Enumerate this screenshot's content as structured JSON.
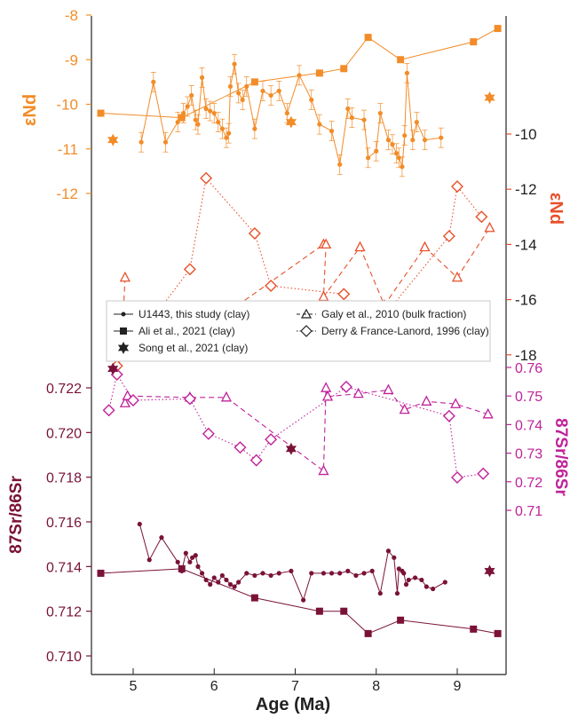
{
  "chart_data": {
    "type": "scatter",
    "x_axis": {
      "label": "Age (Ma)",
      "ticks": [
        "5",
        "6",
        "7",
        "8",
        "9"
      ],
      "range": [
        4.5,
        9.6
      ]
    },
    "axes": {
      "nd_left": {
        "label": "εNd",
        "ticks": [
          "-8",
          "-9",
          "-10",
          "-11",
          "-12"
        ],
        "range": [
          -12,
          -8
        ],
        "color": "#f28c28"
      },
      "nd_right": {
        "label": "εNd",
        "ticks": [
          "-10",
          "-12",
          "-14",
          "-16",
          "-18"
        ],
        "range": [
          -18,
          -10
        ],
        "color": "#e8502a"
      },
      "sr_right": {
        "label": "87Sr/86Sr",
        "ticks": [
          "0.76",
          "0.75",
          "0.74",
          "0.73",
          "0.72",
          "0.71"
        ],
        "range": [
          0.71,
          0.76
        ],
        "color": "#c0229a"
      },
      "sr_left": {
        "label": "87Sr/86Sr",
        "ticks": [
          "0.722",
          "0.720",
          "0.718",
          "0.716",
          "0.714",
          "0.712",
          "0.710"
        ],
        "range": [
          0.71,
          0.722
        ],
        "color": "#7a1238"
      }
    },
    "legend": {
      "placement": "center",
      "entries": [
        {
          "label": "U1443, this study (clay)",
          "marker": "circle",
          "line": "solid"
        },
        {
          "label": "Galy et al., 2010 (bulk fraction)",
          "marker": "triangle-open",
          "line": "dashed"
        },
        {
          "label": "Ali et al., 2021 (clay)",
          "marker": "square",
          "line": "solid"
        },
        {
          "label": "Derry & France-Lanord, 1996 (clay)",
          "marker": "diamond-open",
          "line": "dotted"
        },
        {
          "label": "Song et al., 2021 (clay)",
          "marker": "star",
          "line": "none"
        }
      ]
    },
    "series": [
      {
        "panel": "nd_left",
        "color": "#f28c28",
        "marker": "circle",
        "line": "solid",
        "error_bars": true,
        "points": [
          [
            5.1,
            -10.85
          ],
          [
            5.25,
            -9.5
          ],
          [
            5.4,
            -10.85
          ],
          [
            5.55,
            -10.4
          ],
          [
            5.62,
            -10.2
          ],
          [
            5.67,
            -10.05
          ],
          [
            5.72,
            -9.8
          ],
          [
            5.77,
            -10.35
          ],
          [
            5.8,
            -10.45
          ],
          [
            5.85,
            -9.4
          ],
          [
            5.9,
            -10.1
          ],
          [
            5.95,
            -10.15
          ],
          [
            6.0,
            -10.2
          ],
          [
            6.05,
            -10.4
          ],
          [
            6.1,
            -10.55
          ],
          [
            6.15,
            -10.75
          ],
          [
            6.18,
            -10.65
          ],
          [
            6.2,
            -9.6
          ],
          [
            6.25,
            -9.1
          ],
          [
            6.3,
            -9.75
          ],
          [
            6.35,
            -9.9
          ],
          [
            6.4,
            -9.6
          ],
          [
            6.5,
            -10.55
          ],
          [
            6.6,
            -9.7
          ],
          [
            6.7,
            -9.8
          ],
          [
            6.8,
            -9.7
          ],
          [
            6.9,
            -10.2
          ],
          [
            7.05,
            -9.35
          ],
          [
            7.2,
            -9.9
          ],
          [
            7.3,
            -10.45
          ],
          [
            7.45,
            -10.6
          ],
          [
            7.55,
            -11.35
          ],
          [
            7.65,
            -10.1
          ],
          [
            7.7,
            -10.3
          ],
          [
            7.85,
            -10.35
          ],
          [
            7.9,
            -11.2
          ],
          [
            8.0,
            -11.05
          ],
          [
            8.05,
            -10.2
          ],
          [
            8.15,
            -10.8
          ],
          [
            8.2,
            -10.9
          ],
          [
            8.25,
            -11.1
          ],
          [
            8.28,
            -11.2
          ],
          [
            8.32,
            -11.4
          ],
          [
            8.35,
            -10.7
          ],
          [
            8.38,
            -9.3
          ],
          [
            8.45,
            -10.8
          ],
          [
            8.5,
            -10.4
          ],
          [
            8.6,
            -10.8
          ],
          [
            8.8,
            -10.75
          ]
        ]
      },
      {
        "panel": "nd_left",
        "color": "#f28c28",
        "marker": "square",
        "line": "solid",
        "points": [
          [
            4.6,
            -10.2
          ],
          [
            5.6,
            -10.3
          ],
          [
            6.5,
            -9.5
          ],
          [
            7.3,
            -9.3
          ],
          [
            7.6,
            -9.2
          ],
          [
            7.9,
            -8.5
          ],
          [
            8.3,
            -9.0
          ],
          [
            9.2,
            -8.6
          ],
          [
            9.5,
            -8.3
          ]
        ]
      },
      {
        "panel": "nd_left",
        "color": "#f28c28",
        "marker": "star",
        "line": "none",
        "points": [
          [
            4.75,
            -10.8
          ],
          [
            6.95,
            -10.4
          ],
          [
            9.4,
            -9.85
          ]
        ]
      },
      {
        "panel": "nd_right",
        "color": "#e8502a",
        "marker": "triangle-open",
        "line": "dashed",
        "points": [
          [
            4.9,
            -15.2
          ],
          [
            4.88,
            -16.4
          ],
          [
            6.1,
            -16.6
          ],
          [
            7.35,
            -14.0
          ],
          [
            7.38,
            -14.0
          ],
          [
            7.35,
            -15.9
          ],
          [
            7.8,
            -14.1
          ],
          [
            8.1,
            -16.2
          ],
          [
            8.6,
            -14.1
          ],
          [
            9.0,
            -15.2
          ],
          [
            9.4,
            -13.4
          ]
        ]
      },
      {
        "panel": "nd_right",
        "color": "#e8502a",
        "marker": "diamond-open",
        "line": "dotted",
        "points": [
          [
            4.8,
            -18.4
          ],
          [
            5.7,
            -14.9
          ],
          [
            5.9,
            -11.6
          ],
          [
            6.5,
            -13.6
          ],
          [
            6.7,
            -15.5
          ],
          [
            7.6,
            -15.8
          ],
          [
            7.9,
            -17.3
          ],
          [
            8.9,
            -13.7
          ],
          [
            9.0,
            -11.9
          ],
          [
            9.3,
            -13.0
          ]
        ]
      },
      {
        "panel": "sr_right",
        "color": "#c0229a",
        "marker": "triangle-open",
        "line": "dashed",
        "points": [
          [
            4.9,
            0.7475
          ],
          [
            4.93,
            0.75
          ],
          [
            5.7,
            0.7495
          ],
          [
            6.15,
            0.7495
          ],
          [
            7.35,
            0.7238
          ],
          [
            7.38,
            0.7528
          ],
          [
            7.4,
            0.7498
          ],
          [
            7.78,
            0.7508
          ],
          [
            8.15,
            0.7521
          ],
          [
            8.35,
            0.7452
          ],
          [
            8.62,
            0.7481
          ],
          [
            8.98,
            0.7472
          ],
          [
            9.38,
            0.7436
          ]
        ]
      },
      {
        "panel": "sr_right",
        "color": "#c0229a",
        "marker": "diamond-open",
        "line": "dotted",
        "points": [
          [
            4.7,
            0.745
          ],
          [
            4.8,
            0.7575
          ],
          [
            5.0,
            0.7485
          ],
          [
            5.7,
            0.749
          ],
          [
            5.93,
            0.7368
          ],
          [
            6.32,
            0.732
          ],
          [
            6.52,
            0.7275
          ],
          [
            6.7,
            0.7348
          ],
          [
            7.63,
            0.7532
          ],
          [
            8.9,
            0.743
          ],
          [
            9.0,
            0.7215
          ],
          [
            9.32,
            0.7228
          ]
        ]
      },
      {
        "panel": "sr_right",
        "color": "#7a1238",
        "marker": "star",
        "line": "none",
        "points": [
          [
            4.75,
            0.7595
          ],
          [
            6.95,
            0.7315
          ]
        ]
      },
      {
        "panel": "sr_left",
        "color": "#7a1238",
        "marker": "circle",
        "line": "solid",
        "points": [
          [
            5.08,
            0.7159
          ],
          [
            5.2,
            0.7143
          ],
          [
            5.35,
            0.7153
          ],
          [
            5.55,
            0.7142
          ],
          [
            5.6,
            0.7138
          ],
          [
            5.65,
            0.7146
          ],
          [
            5.7,
            0.7142
          ],
          [
            5.73,
            0.7144
          ],
          [
            5.77,
            0.7145
          ],
          [
            5.8,
            0.714
          ],
          [
            5.85,
            0.7137
          ],
          [
            5.9,
            0.7134
          ],
          [
            5.95,
            0.7132
          ],
          [
            6.0,
            0.7135
          ],
          [
            6.05,
            0.7133
          ],
          [
            6.1,
            0.7136
          ],
          [
            6.15,
            0.7134
          ],
          [
            6.2,
            0.7132
          ],
          [
            6.25,
            0.7131
          ],
          [
            6.3,
            0.7133
          ],
          [
            6.4,
            0.7137
          ],
          [
            6.5,
            0.7136
          ],
          [
            6.6,
            0.7137
          ],
          [
            6.7,
            0.7136
          ],
          [
            6.8,
            0.7137
          ],
          [
            6.95,
            0.7138
          ],
          [
            7.1,
            0.7125
          ],
          [
            7.2,
            0.7137
          ],
          [
            7.35,
            0.7137
          ],
          [
            7.45,
            0.7137
          ],
          [
            7.55,
            0.7137
          ],
          [
            7.65,
            0.7138
          ],
          [
            7.75,
            0.7136
          ],
          [
            7.85,
            0.7137
          ],
          [
            7.95,
            0.7138
          ],
          [
            8.05,
            0.7128
          ],
          [
            8.15,
            0.7147
          ],
          [
            8.22,
            0.7144
          ],
          [
            8.26,
            0.7128
          ],
          [
            8.28,
            0.7139
          ],
          [
            8.32,
            0.7138
          ],
          [
            8.34,
            0.7137
          ],
          [
            8.37,
            0.7132
          ],
          [
            8.4,
            0.7134
          ],
          [
            8.48,
            0.7135
          ],
          [
            8.56,
            0.7134
          ],
          [
            8.62,
            0.7131
          ],
          [
            8.7,
            0.713
          ],
          [
            8.85,
            0.7133
          ]
        ]
      },
      {
        "panel": "sr_left",
        "color": "#7a1238",
        "marker": "square",
        "line": "solid",
        "points": [
          [
            4.6,
            0.7137
          ],
          [
            5.6,
            0.7139
          ],
          [
            6.5,
            0.7126
          ],
          [
            7.3,
            0.712
          ],
          [
            7.6,
            0.712
          ],
          [
            7.9,
            0.711
          ],
          [
            8.3,
            0.7116
          ],
          [
            9.2,
            0.7112
          ],
          [
            9.5,
            0.711
          ]
        ]
      },
      {
        "panel": "sr_left",
        "color": "#7a1238",
        "marker": "star",
        "line": "none",
        "points": [
          [
            9.4,
            0.7138
          ]
        ]
      }
    ]
  }
}
